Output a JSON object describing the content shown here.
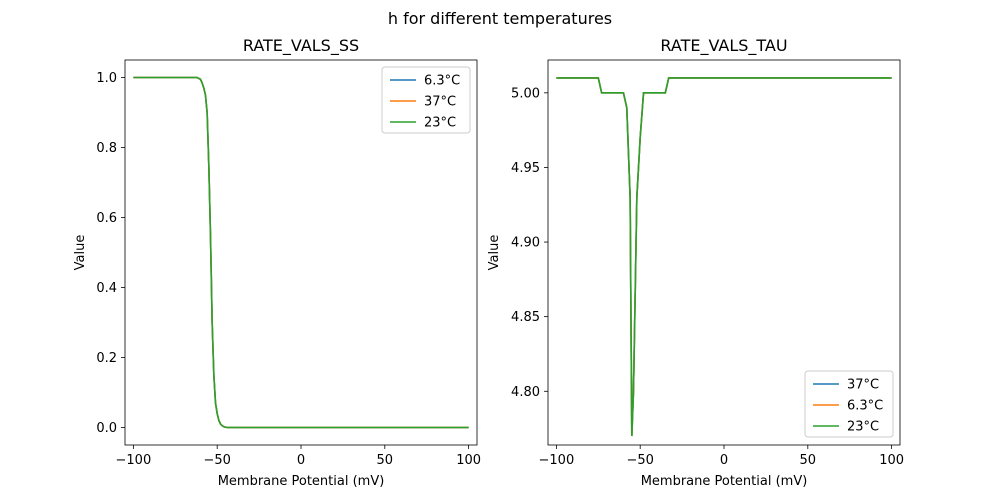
{
  "figure": {
    "suptitle": "h for different temperatures"
  },
  "chart_data": [
    {
      "type": "line",
      "title": "RATE_VALS_SS",
      "xlabel": "Membrane Potential (mV)",
      "ylabel": "Value",
      "xlim": [
        -105,
        105
      ],
      "ylim": [
        -0.05,
        1.05
      ],
      "xticks": [
        -100,
        -50,
        0,
        50,
        100
      ],
      "yticks": [
        0.0,
        0.2,
        0.4,
        0.6,
        0.8,
        1.0
      ],
      "ytick_labels": [
        "0.0",
        "0.2",
        "0.4",
        "0.6",
        "0.8",
        "1.0"
      ],
      "legend": "top-right",
      "series": [
        {
          "name": "6.3°C",
          "color": "#1f77b4",
          "x": [
            -100,
            -62,
            -60,
            -59,
            -58,
            -57,
            -56,
            -55,
            -54,
            -53,
            -52,
            -51,
            -50,
            -49,
            -48,
            -47,
            -46,
            -45,
            -44,
            100
          ],
          "y": [
            1.0,
            1.0,
            0.995,
            0.985,
            0.97,
            0.95,
            0.9,
            0.75,
            0.55,
            0.3,
            0.15,
            0.07,
            0.04,
            0.02,
            0.01,
            0.005,
            0.002,
            0.001,
            0.0,
            0.0
          ]
        },
        {
          "name": "37°C",
          "color": "#ff7f0e",
          "x": [
            -100,
            -62,
            -60,
            -59,
            -58,
            -57,
            -56,
            -55,
            -54,
            -53,
            -52,
            -51,
            -50,
            -49,
            -48,
            -47,
            -46,
            -45,
            -44,
            100
          ],
          "y": [
            1.0,
            1.0,
            0.995,
            0.985,
            0.97,
            0.95,
            0.9,
            0.75,
            0.55,
            0.3,
            0.15,
            0.07,
            0.04,
            0.02,
            0.01,
            0.005,
            0.002,
            0.001,
            0.0,
            0.0
          ]
        },
        {
          "name": "23°C",
          "color": "#2ca02c",
          "x": [
            -100,
            -62,
            -60,
            -59,
            -58,
            -57,
            -56,
            -55,
            -54,
            -53,
            -52,
            -51,
            -50,
            -49,
            -48,
            -47,
            -46,
            -45,
            -44,
            100
          ],
          "y": [
            1.0,
            1.0,
            0.995,
            0.985,
            0.97,
            0.95,
            0.9,
            0.75,
            0.55,
            0.3,
            0.15,
            0.07,
            0.04,
            0.02,
            0.01,
            0.005,
            0.002,
            0.001,
            0.0,
            0.0
          ]
        }
      ]
    },
    {
      "type": "line",
      "title": "RATE_VALS_TAU",
      "xlabel": "Membrane Potential (mV)",
      "ylabel": "Value",
      "xlim": [
        -105,
        105
      ],
      "ylim": [
        4.764,
        5.022
      ],
      "xticks": [
        -100,
        -50,
        0,
        50,
        100
      ],
      "yticks": [
        4.8,
        4.85,
        4.9,
        4.95,
        5.0
      ],
      "ytick_labels": [
        "4.80",
        "4.85",
        "4.90",
        "4.95",
        "5.00"
      ],
      "legend": "bottom-right",
      "series": [
        {
          "name": "37°C",
          "color": "#1f77b4",
          "x": [
            -100,
            -75,
            -73,
            -60,
            -58,
            -56,
            -55,
            -54,
            -52,
            -50,
            -48,
            -35,
            -33,
            100
          ],
          "y": [
            5.01,
            5.01,
            5.0,
            5.0,
            4.99,
            4.93,
            4.77,
            4.8,
            4.93,
            4.97,
            5.0,
            5.0,
            5.01,
            5.01
          ]
        },
        {
          "name": "6.3°C",
          "color": "#ff7f0e",
          "x": [
            -100,
            -75,
            -73,
            -60,
            -58,
            -56,
            -55,
            -54,
            -52,
            -50,
            -48,
            -35,
            -33,
            100
          ],
          "y": [
            5.01,
            5.01,
            5.0,
            5.0,
            4.99,
            4.93,
            4.77,
            4.8,
            4.93,
            4.97,
            5.0,
            5.0,
            5.01,
            5.01
          ]
        },
        {
          "name": "23°C",
          "color": "#2ca02c",
          "x": [
            -100,
            -75,
            -73,
            -60,
            -58,
            -56,
            -55,
            -54,
            -52,
            -50,
            -48,
            -35,
            -33,
            100
          ],
          "y": [
            5.01,
            5.01,
            5.0,
            5.0,
            4.99,
            4.93,
            4.77,
            4.8,
            4.93,
            4.97,
            5.0,
            5.0,
            5.01,
            5.01
          ]
        }
      ]
    }
  ]
}
